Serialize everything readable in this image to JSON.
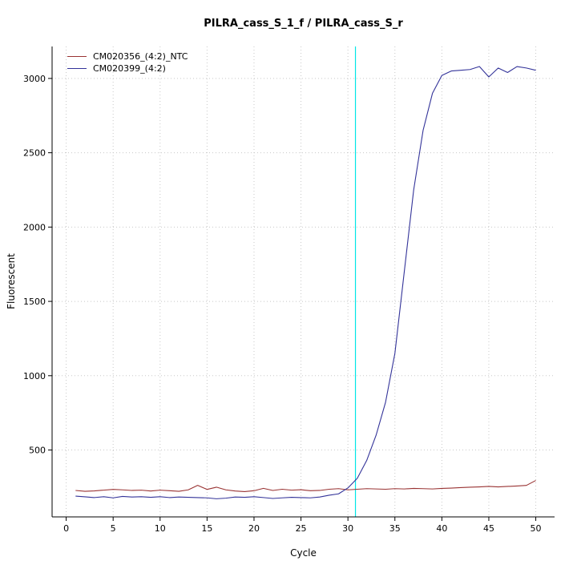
{
  "chart_data": {
    "type": "line",
    "title": "PILRA_cass_S_1_f / PILRA_cass_S_r",
    "xlabel": "Cycle",
    "ylabel": "Fluorescent",
    "xlim": [
      -1.5,
      52
    ],
    "ylim": [
      50,
      3215
    ],
    "xticks": [
      0,
      5,
      10,
      15,
      20,
      25,
      30,
      35,
      40,
      45,
      50
    ],
    "yticks": [
      500,
      1000,
      1500,
      2000,
      2500,
      3000
    ],
    "grid": "dotted",
    "grid_color": "#c8c8c8",
    "legend_position": "top-left",
    "x": [
      1,
      2,
      3,
      4,
      5,
      6,
      7,
      8,
      9,
      10,
      11,
      12,
      13,
      14,
      15,
      16,
      17,
      18,
      19,
      20,
      21,
      22,
      23,
      24,
      25,
      26,
      27,
      28,
      29,
      30,
      31,
      32,
      33,
      34,
      35,
      36,
      37,
      38,
      39,
      40,
      41,
      42,
      43,
      44,
      45,
      46,
      47,
      48,
      49,
      50
    ],
    "series": [
      {
        "name": "CM020356_(4:2)_NTC",
        "color": "#993333",
        "values": [
          228,
          222,
          225,
          230,
          235,
          232,
          228,
          230,
          224,
          230,
          226,
          222,
          232,
          262,
          235,
          250,
          232,
          224,
          220,
          226,
          242,
          228,
          236,
          230,
          233,
          226,
          228,
          236,
          240,
          232,
          236,
          240,
          238,
          236,
          240,
          238,
          242,
          240,
          238,
          242,
          244,
          247,
          250,
          252,
          255,
          252,
          255,
          258,
          262,
          295
        ]
      },
      {
        "name": "CM020399_(4:2)",
        "color": "#333399",
        "values": [
          190,
          185,
          180,
          186,
          178,
          188,
          184,
          186,
          182,
          186,
          180,
          184,
          182,
          180,
          178,
          172,
          176,
          184,
          182,
          186,
          180,
          174,
          178,
          182,
          180,
          178,
          184,
          196,
          205,
          245,
          310,
          430,
          600,
          820,
          1150,
          1700,
          2250,
          2650,
          2900,
          3020,
          3050,
          3055,
          3060,
          3080,
          3010,
          3070,
          3040,
          3080,
          3070,
          3055
        ]
      }
    ],
    "threshold_line": {
      "x": 30.8,
      "color": "#00e5e5"
    }
  }
}
